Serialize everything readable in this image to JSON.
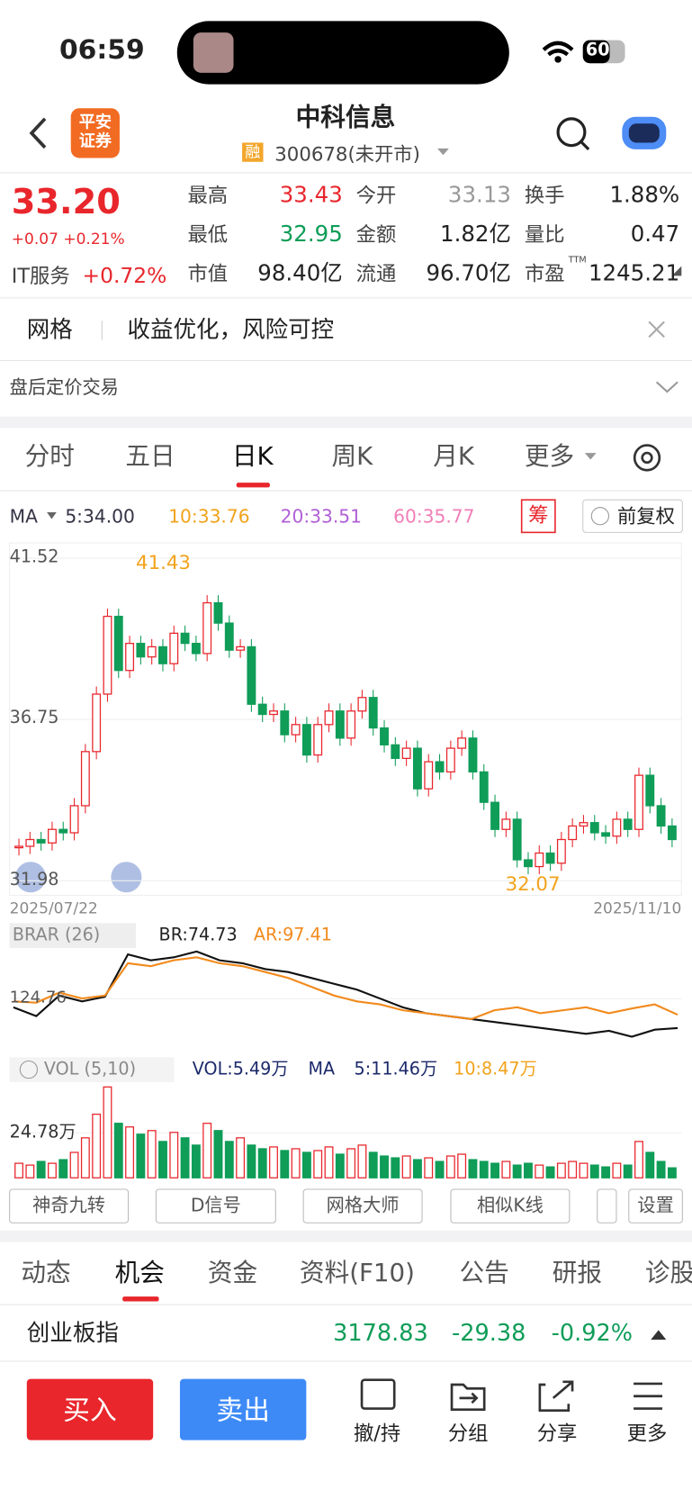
{
  "status_bar": {
    "time": "06:59",
    "battery": "60"
  },
  "header": {
    "logo": "平安\n证券",
    "title": "中科信息",
    "badge": "融",
    "code": "300678(未开市)"
  },
  "quote": {
    "price": "33.20",
    "change": "+0.07 +0.21%",
    "sector": "IT服务",
    "sector_change": "+0.72%",
    "stats": [
      [
        {
          "label": "最高",
          "value": "33.43"
        },
        {
          "label": "今开",
          "value": "33.13"
        },
        {
          "label": "换手",
          "value": "1.88%"
        }
      ],
      [
        {
          "label": "最低",
          "value": "32.95"
        },
        {
          "label": "金额",
          "value": "1.82亿"
        },
        {
          "label": "量比",
          "value": "0.47"
        }
      ],
      [
        {
          "label": "市值",
          "value": "98.40亿"
        },
        {
          "label": "流通",
          "value": "96.70亿"
        },
        {
          "label": "市盈",
          "sup": "TTM",
          "value": "1245.21"
        }
      ]
    ]
  },
  "banner": {
    "tag": "网格",
    "text": "收益优化，风险可控",
    "after_hours": "盘后定价交易"
  },
  "tabs": [
    "分时",
    "五日",
    "日K",
    "周K",
    "月K",
    "更多"
  ],
  "indicator": {
    "name": "MA",
    "ma5": "5:34.00",
    "ma10": "10:33.76",
    "ma20": "20:33.51",
    "ma60": "60:35.77",
    "chips": "筹",
    "adjust": "前复权"
  },
  "kline": {
    "yticks": [
      41.52,
      36.75,
      31.98
    ],
    "ylim": [
      31.55,
      41.97
    ],
    "start_date": "2025/07/22",
    "end_date": "2025/11/10",
    "high_label": "41.43",
    "low_label": "32.07",
    "closes": [
      33.0,
      33.2,
      33.1,
      33.5,
      33.4,
      34.2,
      35.8,
      37.5,
      39.8,
      38.2,
      39.0,
      38.6,
      38.9,
      38.4,
      39.3,
      39.0,
      38.7,
      40.2,
      39.6,
      38.8,
      38.9,
      37.2,
      36.9,
      37.0,
      36.3,
      36.6,
      35.7,
      36.6,
      37.0,
      36.2,
      37.0,
      37.4,
      36.5,
      36.0,
      35.6,
      35.9,
      34.7,
      35.5,
      35.2,
      35.9,
      36.2,
      35.2,
      34.3,
      33.5,
      33.8,
      32.6,
      32.4,
      32.8,
      32.5,
      33.2,
      33.6,
      33.7,
      33.4,
      33.3,
      33.8,
      33.5,
      35.1,
      34.2,
      33.6,
      33.2
    ]
  },
  "brar": {
    "name": "BRAR (26)",
    "br": "BR:74.73",
    "ar": "AR:97.41",
    "yticks": [
      124.76
    ],
    "ylim": [
      48,
      206
    ],
    "br_values": [
      110,
      95,
      130,
      120,
      128,
      200,
      190,
      195,
      205,
      190,
      185,
      175,
      170,
      160,
      150,
      140,
      125,
      110,
      100,
      95,
      90,
      85,
      80,
      75,
      70,
      65,
      70,
      60,
      72,
      74.73
    ],
    "ar_values": [
      120,
      118,
      135,
      125,
      130,
      185,
      180,
      190,
      195,
      185,
      180,
      170,
      160,
      145,
      130,
      120,
      115,
      105,
      100,
      95,
      90,
      105,
      110,
      100,
      105,
      110,
      100,
      108,
      115,
      97.41
    ]
  },
  "vol": {
    "name": "VOL (5,10)",
    "vol": "VOL:5.49万",
    "ma": "MA",
    "ma5": "5:11.46万",
    "ma10": "10:8.47万",
    "yticks": [
      {
        "value": 24.78,
        "label": "24.78万"
      }
    ],
    "ylim": [
      0,
      52.7
    ],
    "values": [
      8,
      7,
      9,
      8,
      10,
      14,
      22,
      35,
      50,
      30,
      28,
      24,
      26,
      20,
      25,
      22,
      18,
      30,
      26,
      20,
      22,
      18,
      16,
      17,
      15,
      16,
      14,
      15,
      17,
      13,
      16,
      18,
      14,
      12,
      11,
      12,
      10,
      11,
      9,
      12,
      13,
      10,
      9,
      8,
      9,
      7,
      8,
      7,
      6,
      8,
      9,
      8,
      7,
      6,
      8,
      7,
      20,
      14,
      9,
      5.49
    ]
  },
  "tools": [
    "神奇九转",
    "D信号",
    "网格大师",
    "相似K线",
    "设置"
  ],
  "news_tabs": [
    "动态",
    "机会",
    "资金",
    "资料(F10)",
    "公告",
    "研报",
    "诊股"
  ],
  "index_ticker": {
    "name": "创业板指",
    "value": "3178.83",
    "change": "-29.38",
    "pct": "-0.92%"
  },
  "bottom_bar": {
    "buy": "买入",
    "sell": "卖出",
    "actions": [
      "撤/持",
      "分组",
      "分享",
      "更多"
    ]
  }
}
